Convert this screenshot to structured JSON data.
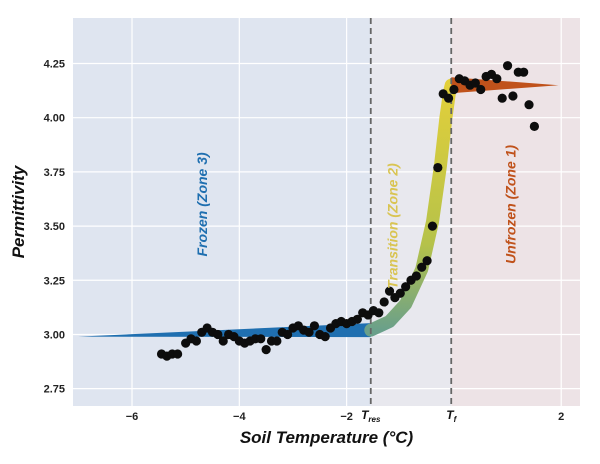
{
  "chart_data": {
    "type": "scatter",
    "title": "",
    "xlabel": "Soil Temperature (°C)",
    "ylabel": "Permittivity",
    "xlim": [
      -7.1,
      2.35
    ],
    "ylim": [
      2.67,
      4.46
    ],
    "x_ticks": [
      -6,
      -4,
      -2,
      2
    ],
    "x_tick_labels": [
      "−6",
      "−4",
      "−2",
      "2"
    ],
    "y_ticks": [
      2.75,
      3.0,
      3.25,
      3.5,
      3.75,
      4.0,
      4.25
    ],
    "y_tick_labels": [
      "2.75",
      "3.00",
      "3.25",
      "3.50",
      "3.75",
      "4.00",
      "4.25"
    ],
    "grid": true,
    "vertical_lines": [
      {
        "name": "T_res",
        "label_main": "T",
        "label_sub": "res",
        "x": -1.55
      },
      {
        "name": "T_f",
        "label_main": "T",
        "label_sub": "f",
        "x": -0.05
      }
    ],
    "zones": [
      {
        "name": "frozen",
        "label": "Frozen (Zone 3)",
        "x_from": -7.1,
        "x_to": -1.55,
        "label_x": -4.6,
        "label_y": 3.6,
        "color": "#1f6fb0",
        "bg": "#dfe5f0"
      },
      {
        "name": "transition",
        "label": "Transition (Zone 2)",
        "x_from": -1.55,
        "x_to": -0.05,
        "label_x": -1.05,
        "label_y": 3.5,
        "color": "#d9c452",
        "bg": "#e8e8ee"
      },
      {
        "name": "unfrozen",
        "label": "Unfrozen (Zone 1)",
        "x_from": -0.05,
        "x_to": 2.35,
        "label_x": 1.15,
        "label_y": 3.6,
        "color": "#c0521b",
        "bg": "#ede3e6"
      }
    ],
    "model_curve": {
      "frozen_segment": {
        "x": [
          -7.0,
          -1.55
        ],
        "y": [
          2.99,
          3.02
        ],
        "color": "#1f6fb0"
      },
      "transition_segment": {
        "x": [
          -1.55,
          -1.2,
          -0.9,
          -0.6,
          -0.4,
          -0.25,
          -0.15,
          -0.08,
          -0.05
        ],
        "y": [
          3.02,
          3.06,
          3.14,
          3.3,
          3.52,
          3.78,
          4.0,
          4.12,
          4.15
        ],
        "color_start": "#6aa08a",
        "color_end": "#e2cf3a"
      },
      "unfrozen_segment": {
        "x": [
          -0.05,
          1.95
        ],
        "y": [
          4.15,
          4.15
        ],
        "color": "#c0521b"
      }
    },
    "points": {
      "x": [
        -5.45,
        -5.35,
        -5.25,
        -5.15,
        -5.0,
        -4.9,
        -4.8,
        -4.7,
        -4.6,
        -4.5,
        -4.4,
        -4.3,
        -4.2,
        -4.1,
        -4.0,
        -3.9,
        -3.8,
        -3.7,
        -3.6,
        -3.5,
        -3.4,
        -3.3,
        -3.2,
        -3.1,
        -3.0,
        -2.9,
        -2.8,
        -2.7,
        -2.6,
        -2.5,
        -2.4,
        -2.3,
        -2.2,
        -2.1,
        -2.0,
        -1.9,
        -1.8,
        -1.7,
        -1.6,
        -1.5,
        -1.4,
        -1.3,
        -1.2,
        -1.1,
        -1.0,
        -0.9,
        -0.8,
        -0.7,
        -0.6,
        -0.5,
        -0.4,
        -0.3,
        -0.2,
        -0.1,
        0.0,
        0.1,
        0.2,
        0.3,
        0.4,
        0.5,
        0.6,
        0.7,
        0.8,
        0.9,
        1.0,
        1.1,
        1.2,
        1.3,
        1.4,
        1.5
      ],
      "y": [
        2.91,
        2.9,
        2.91,
        2.91,
        2.96,
        2.98,
        2.97,
        3.01,
        3.03,
        3.01,
        3.0,
        2.97,
        3.0,
        2.99,
        2.97,
        2.96,
        2.97,
        2.98,
        2.98,
        2.93,
        2.97,
        2.97,
        3.01,
        3.0,
        3.03,
        3.04,
        3.02,
        3.01,
        3.04,
        3.0,
        2.99,
        3.03,
        3.05,
        3.06,
        3.05,
        3.06,
        3.07,
        3.1,
        3.09,
        3.11,
        3.1,
        3.15,
        3.2,
        3.17,
        3.19,
        3.22,
        3.25,
        3.27,
        3.31,
        3.34,
        3.5,
        3.77,
        4.11,
        4.09,
        4.13,
        4.18,
        4.17,
        4.15,
        4.16,
        4.13,
        4.19,
        4.2,
        4.18,
        4.09,
        4.24,
        4.1,
        4.21,
        4.21,
        4.06,
        3.96
      ]
    },
    "point_color": "#0d0d0d"
  }
}
